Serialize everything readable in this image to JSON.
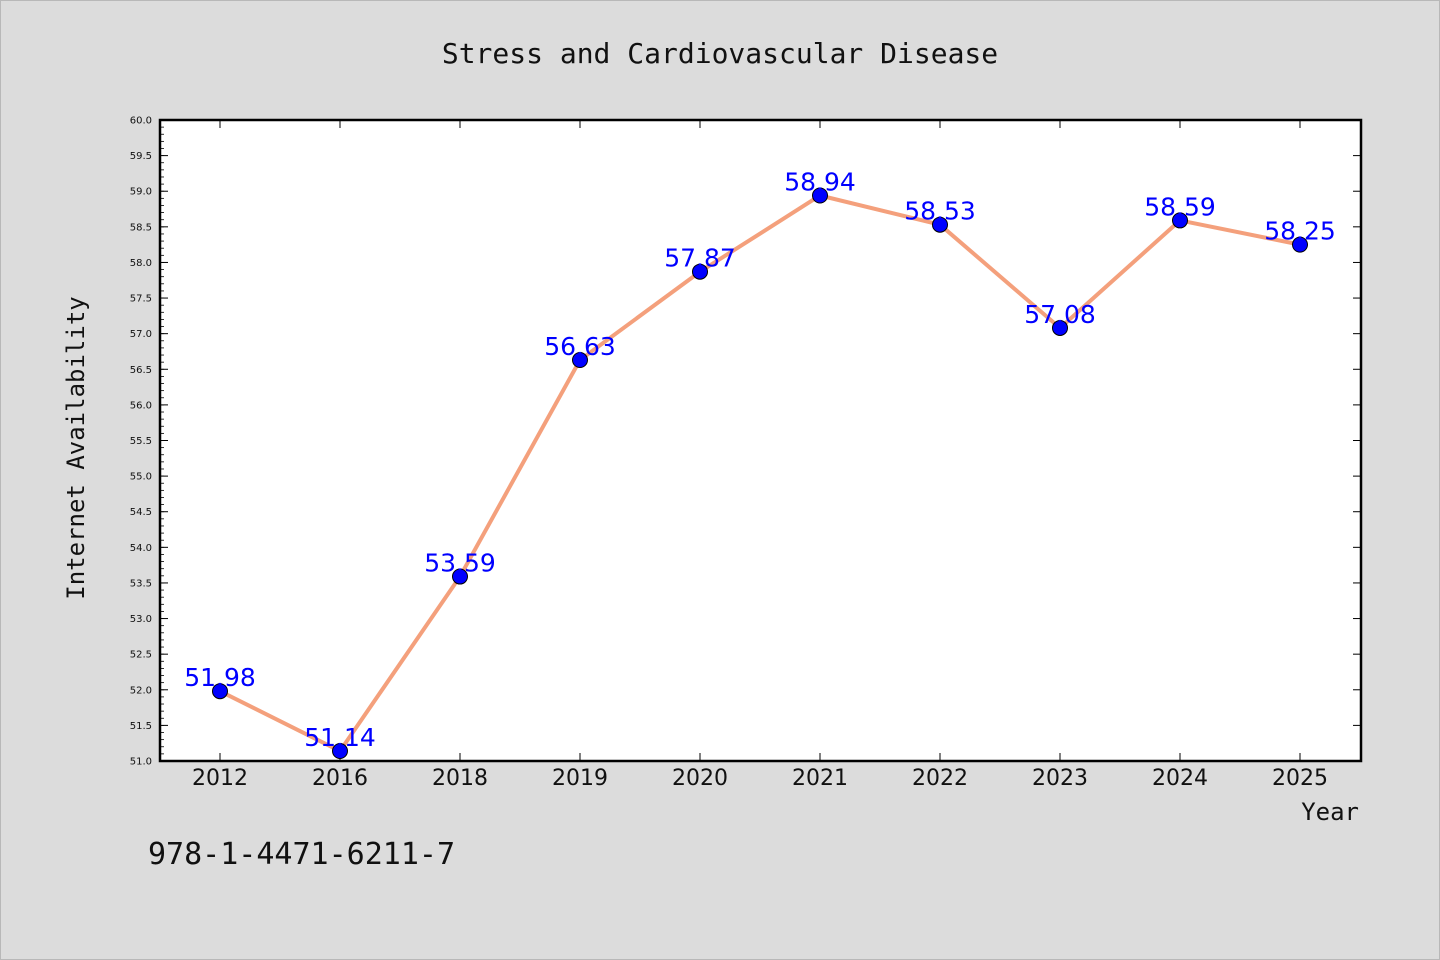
{
  "colors": {
    "background": "#dcdcdc",
    "plot_background": "#ffffff",
    "line": "#f4a07c",
    "marker": "#0000ff",
    "data_label": "#0000ff",
    "text": "#111111"
  },
  "footer_code": "978-1-4471-6211-7",
  "chart_data": {
    "type": "line",
    "title": "Stress and Cardiovascular Disease",
    "xlabel": "Year",
    "ylabel": "Internet Availability",
    "categories": [
      "2012",
      "2016",
      "2018",
      "2019",
      "2020",
      "2021",
      "2022",
      "2023",
      "2024",
      "2025"
    ],
    "series": [
      {
        "values": [
          51.98,
          51.14,
          53.59,
          56.63,
          57.87,
          58.94,
          58.53,
          57.08,
          58.59,
          58.25
        ],
        "labels": [
          "51.98",
          "51.14",
          "53.59",
          "56.63",
          "57.87",
          "58.94",
          "58.53",
          "57.08",
          "58.59",
          "58.25"
        ]
      }
    ],
    "ylim": [
      51.0,
      60.0
    ],
    "yticks": [
      "51.0",
      "51.5",
      "52.0",
      "52.5",
      "53.0",
      "53.5",
      "54.0",
      "54.5",
      "55.0",
      "55.5",
      "56.0",
      "56.5",
      "57.0",
      "57.5",
      "58.0",
      "58.5",
      "59.0",
      "59.5",
      "60.0"
    ],
    "grid": false,
    "markers": "circle",
    "data_labels": true
  }
}
